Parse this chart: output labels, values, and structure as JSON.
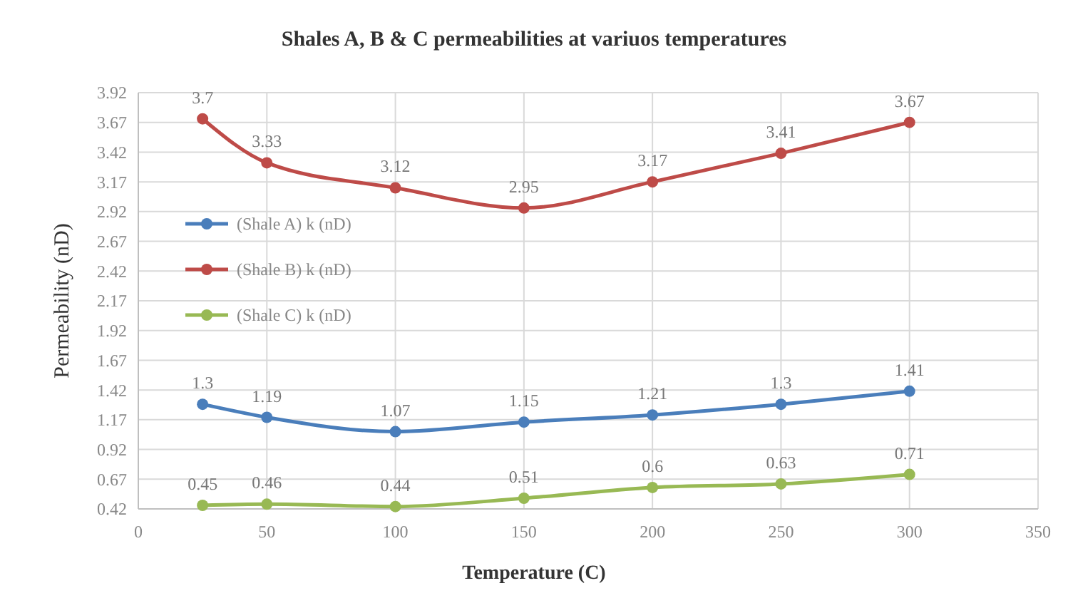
{
  "chart_data": {
    "type": "line",
    "title": "Shales A, B & C permeabilities at variuos temperatures",
    "xlabel": "Temperature (C)",
    "ylabel": "Permeability (nD)",
    "x": [
      25,
      50,
      100,
      150,
      200,
      250,
      300
    ],
    "series": [
      {
        "name": "(Shale A) k (nD)",
        "color": "#4a7ebb",
        "values": [
          1.3,
          1.19,
          1.07,
          1.15,
          1.21,
          1.3,
          1.41
        ]
      },
      {
        "name": "(Shale B) k (nD)",
        "color": "#be4b48",
        "values": [
          3.7,
          3.33,
          3.12,
          2.95,
          3.17,
          3.41,
          3.67
        ]
      },
      {
        "name": "(Shale C) k (nD)",
        "color": "#98b954",
        "values": [
          0.45,
          0.46,
          0.44,
          0.51,
          0.6,
          0.63,
          0.71
        ]
      }
    ],
    "xlim": [
      0,
      350
    ],
    "xticks": [
      0,
      50,
      100,
      150,
      200,
      250,
      300,
      350
    ],
    "ylim": [
      0.42,
      3.92
    ],
    "yticks": [
      0.42,
      0.67,
      0.92,
      1.17,
      1.42,
      1.67,
      1.92,
      2.17,
      2.42,
      2.67,
      2.92,
      3.17,
      3.42,
      3.67,
      3.92
    ],
    "grid": true,
    "legend": "left",
    "marker": "circle",
    "line_style": "solid",
    "data_labels": true
  }
}
